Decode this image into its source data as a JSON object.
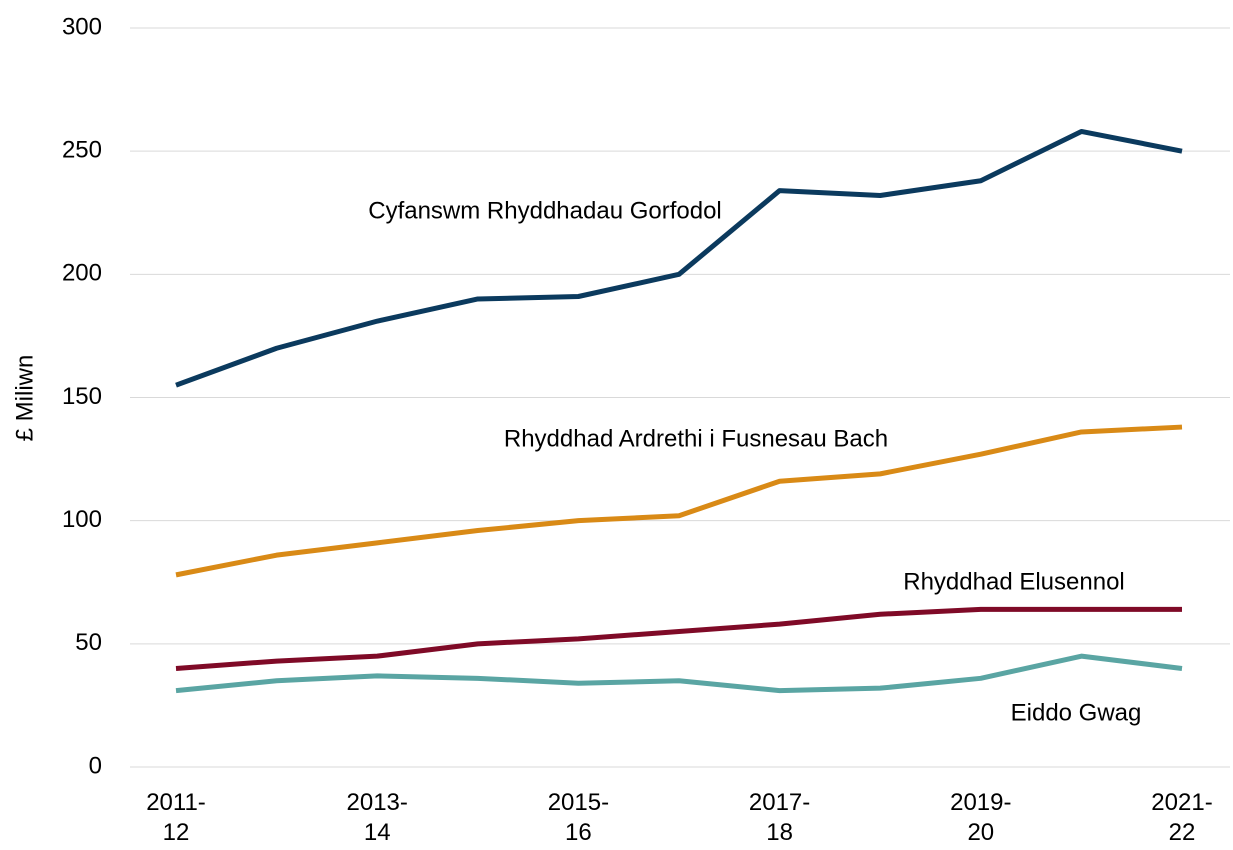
{
  "chart_data": {
    "type": "line",
    "y_label": "£ Miliwn",
    "categories": [
      "2011-12",
      null,
      "2013-14",
      null,
      "2015-16",
      null,
      "2017-18",
      null,
      "2019-20",
      null,
      "2021-22"
    ],
    "series": [
      {
        "name": "Cyfanswm Rhyddhadau Gorfodol",
        "color": "#0b3a5e",
        "values": [
          155,
          170,
          181,
          190,
          191,
          200,
          234,
          232,
          238,
          258,
          250
        ]
      },
      {
        "name": "Rhyddhad Ardrethi i Fusnesau Bach",
        "color": "#d98a16",
        "values": [
          78,
          86,
          91,
          96,
          100,
          102,
          116,
          119,
          127,
          136,
          138
        ]
      },
      {
        "name": "Rhyddhad Elusennol",
        "color": "#7f0a27",
        "values": [
          40,
          43,
          45,
          50,
          52,
          55,
          58,
          62,
          64,
          64,
          64
        ]
      },
      {
        "name": "Eiddo Gwag",
        "color": "#5aa5a3",
        "values": [
          31,
          35,
          37,
          36,
          34,
          35,
          31,
          32,
          36,
          45,
          40
        ]
      }
    ],
    "ylim": [
      0,
      300
    ],
    "yticks": [
      0,
      50,
      100,
      150,
      200,
      250,
      300
    ],
    "grid": true
  }
}
